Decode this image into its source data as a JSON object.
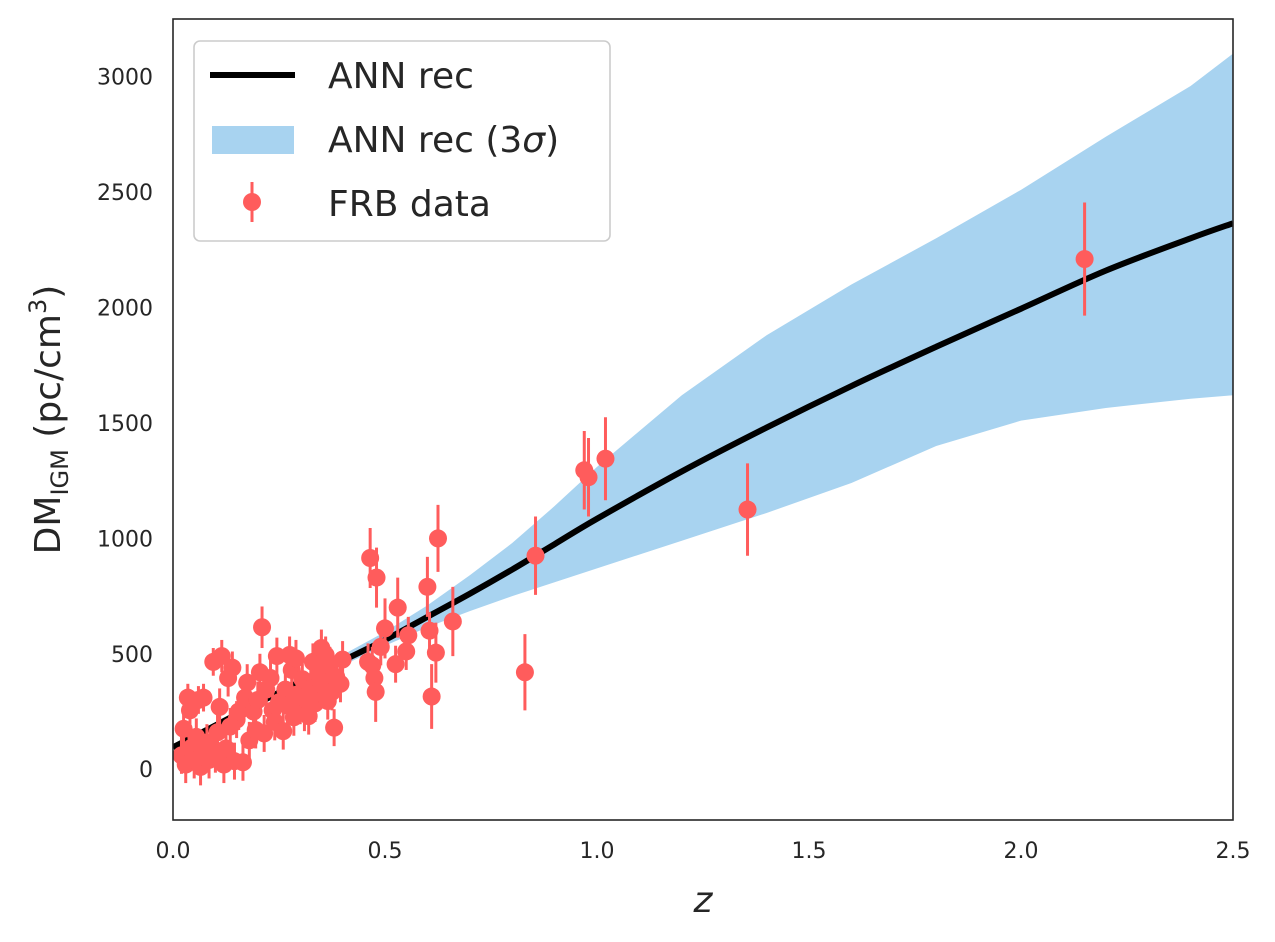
{
  "chart_data": {
    "type": "scatter",
    "title": "",
    "xlabel": "z",
    "ylabel": {
      "base": "DM",
      "sub": "IGM",
      "unit_open": " (pc/cm",
      "unit_sup": "3",
      "unit_close": ")"
    },
    "xlim": [
      0.0,
      2.5
    ],
    "ylim": [
      -220,
      3250
    ],
    "grid": false,
    "x_ticks": [
      0.0,
      0.5,
      1.0,
      1.5,
      2.0,
      2.5
    ],
    "x_tick_labels": [
      "0.0",
      "0.5",
      "1.0",
      "1.5",
      "2.0",
      "2.5"
    ],
    "y_ticks": [
      0,
      500,
      1000,
      1500,
      2000,
      2500,
      3000
    ],
    "y_tick_labels": [
      "0",
      "500",
      "1000",
      "1500",
      "2000",
      "2500",
      "3000"
    ],
    "legend": {
      "position": "top-left",
      "entries": [
        {
          "label": "ANN rec",
          "kind": "line"
        },
        {
          "label_main": "ANN rec (3",
          "label_sym": "σ",
          "label_end": ")",
          "kind": "band"
        },
        {
          "label": "FRB data",
          "kind": "errorbar"
        }
      ]
    },
    "colors": {
      "line": "#000000",
      "band": "#a8d3f0",
      "points": "#ff5c5c",
      "frame": "#262626"
    },
    "series": [
      {
        "name": "ANN rec",
        "type": "line",
        "x": [
          0.0,
          0.1,
          0.2,
          0.3,
          0.4,
          0.5,
          0.6,
          0.7,
          0.8,
          0.9,
          1.0,
          1.2,
          1.4,
          1.6,
          1.8,
          2.0,
          2.2,
          2.4,
          2.5
        ],
        "y": [
          95,
          190,
          285,
          380,
          470,
          560,
          660,
          760,
          865,
          975,
          1085,
          1290,
          1480,
          1660,
          1830,
          1995,
          2160,
          2300,
          2365
        ]
      },
      {
        "name": "ANN rec (3σ)",
        "type": "area",
        "x": [
          0.0,
          0.1,
          0.2,
          0.3,
          0.4,
          0.5,
          0.6,
          0.7,
          0.8,
          0.9,
          1.0,
          1.2,
          1.4,
          1.6,
          1.8,
          2.0,
          2.2,
          2.4,
          2.5
        ],
        "lower": [
          85,
          180,
          275,
          365,
          450,
          535,
          615,
          685,
          750,
          810,
          870,
          990,
          1110,
          1240,
          1400,
          1510,
          1565,
          1605,
          1620
        ],
        "upper": [
          105,
          200,
          295,
          395,
          495,
          595,
          710,
          840,
          980,
          1140,
          1310,
          1620,
          1880,
          2100,
          2300,
          2510,
          2740,
          2960,
          3100
        ]
      },
      {
        "name": "FRB data",
        "type": "errorbar",
        "points": [
          {
            "x": 0.02,
            "y": 60,
            "err": 80
          },
          {
            "x": 0.025,
            "y": 175,
            "err": 80
          },
          {
            "x": 0.03,
            "y": 20,
            "err": 80
          },
          {
            "x": 0.035,
            "y": 310,
            "err": 60
          },
          {
            "x": 0.04,
            "y": 255,
            "err": 60
          },
          {
            "x": 0.045,
            "y": 95,
            "err": 80
          },
          {
            "x": 0.05,
            "y": 40,
            "err": 80
          },
          {
            "x": 0.055,
            "y": 140,
            "err": 80
          },
          {
            "x": 0.06,
            "y": 300,
            "err": 60
          },
          {
            "x": 0.065,
            "y": 10,
            "err": 80
          },
          {
            "x": 0.07,
            "y": 75,
            "err": 80
          },
          {
            "x": 0.072,
            "y": 310,
            "err": 60
          },
          {
            "x": 0.08,
            "y": 115,
            "err": 80
          },
          {
            "x": 0.085,
            "y": 40,
            "err": 80
          },
          {
            "x": 0.09,
            "y": 100,
            "err": 80
          },
          {
            "x": 0.095,
            "y": 465,
            "err": 60
          },
          {
            "x": 0.1,
            "y": 65,
            "err": 80
          },
          {
            "x": 0.105,
            "y": 160,
            "err": 80
          },
          {
            "x": 0.11,
            "y": 270,
            "err": 80
          },
          {
            "x": 0.115,
            "y": 490,
            "err": 70
          },
          {
            "x": 0.12,
            "y": 20,
            "err": 80
          },
          {
            "x": 0.125,
            "y": 90,
            "err": 80
          },
          {
            "x": 0.13,
            "y": 395,
            "err": 80
          },
          {
            "x": 0.135,
            "y": 185,
            "err": 80
          },
          {
            "x": 0.14,
            "y": 440,
            "err": 70
          },
          {
            "x": 0.145,
            "y": 35,
            "err": 80
          },
          {
            "x": 0.15,
            "y": 215,
            "err": 80
          },
          {
            "x": 0.155,
            "y": 250,
            "err": 80
          },
          {
            "x": 0.165,
            "y": 30,
            "err": 80
          },
          {
            "x": 0.17,
            "y": 310,
            "err": 80
          },
          {
            "x": 0.175,
            "y": 375,
            "err": 80
          },
          {
            "x": 0.18,
            "y": 125,
            "err": 80
          },
          {
            "x": 0.19,
            "y": 250,
            "err": 80
          },
          {
            "x": 0.195,
            "y": 170,
            "err": 80
          },
          {
            "x": 0.2,
            "y": 300,
            "err": 80
          },
          {
            "x": 0.205,
            "y": 420,
            "err": 80
          },
          {
            "x": 0.21,
            "y": 615,
            "err": 90
          },
          {
            "x": 0.215,
            "y": 155,
            "err": 80
          },
          {
            "x": 0.22,
            "y": 345,
            "err": 80
          },
          {
            "x": 0.23,
            "y": 395,
            "err": 80
          },
          {
            "x": 0.235,
            "y": 255,
            "err": 80
          },
          {
            "x": 0.24,
            "y": 205,
            "err": 80
          },
          {
            "x": 0.245,
            "y": 490,
            "err": 80
          },
          {
            "x": 0.25,
            "y": 290,
            "err": 80
          },
          {
            "x": 0.26,
            "y": 165,
            "err": 80
          },
          {
            "x": 0.265,
            "y": 345,
            "err": 80
          },
          {
            "x": 0.27,
            "y": 275,
            "err": 80
          },
          {
            "x": 0.275,
            "y": 495,
            "err": 80
          },
          {
            "x": 0.28,
            "y": 430,
            "err": 80
          },
          {
            "x": 0.285,
            "y": 225,
            "err": 80
          },
          {
            "x": 0.29,
            "y": 480,
            "err": 80
          },
          {
            "x": 0.295,
            "y": 325,
            "err": 80
          },
          {
            "x": 0.3,
            "y": 275,
            "err": 80
          },
          {
            "x": 0.305,
            "y": 390,
            "err": 80
          },
          {
            "x": 0.31,
            "y": 245,
            "err": 80
          },
          {
            "x": 0.315,
            "y": 300,
            "err": 80
          },
          {
            "x": 0.32,
            "y": 230,
            "err": 80
          },
          {
            "x": 0.325,
            "y": 350,
            "err": 80
          },
          {
            "x": 0.33,
            "y": 465,
            "err": 80
          },
          {
            "x": 0.335,
            "y": 285,
            "err": 80
          },
          {
            "x": 0.34,
            "y": 330,
            "err": 80
          },
          {
            "x": 0.345,
            "y": 410,
            "err": 80
          },
          {
            "x": 0.35,
            "y": 525,
            "err": 80
          },
          {
            "x": 0.355,
            "y": 365,
            "err": 80
          },
          {
            "x": 0.36,
            "y": 495,
            "err": 80
          },
          {
            "x": 0.365,
            "y": 295,
            "err": 80
          },
          {
            "x": 0.37,
            "y": 450,
            "err": 80
          },
          {
            "x": 0.375,
            "y": 335,
            "err": 80
          },
          {
            "x": 0.38,
            "y": 180,
            "err": 80
          },
          {
            "x": 0.385,
            "y": 400,
            "err": 80
          },
          {
            "x": 0.395,
            "y": 370,
            "err": 80
          },
          {
            "x": 0.4,
            "y": 475,
            "err": 80
          },
          {
            "x": 0.46,
            "y": 465,
            "err": 80
          },
          {
            "x": 0.465,
            "y": 915,
            "err": 130
          },
          {
            "x": 0.47,
            "y": 450,
            "err": 80
          },
          {
            "x": 0.475,
            "y": 395,
            "err": 80
          },
          {
            "x": 0.478,
            "y": 335,
            "err": 130
          },
          {
            "x": 0.48,
            "y": 830,
            "err": 130
          },
          {
            "x": 0.49,
            "y": 530,
            "err": 80
          },
          {
            "x": 0.5,
            "y": 610,
            "err": 130
          },
          {
            "x": 0.525,
            "y": 455,
            "err": 80
          },
          {
            "x": 0.53,
            "y": 700,
            "err": 130
          },
          {
            "x": 0.55,
            "y": 510,
            "err": 80
          },
          {
            "x": 0.555,
            "y": 580,
            "err": 80
          },
          {
            "x": 0.6,
            "y": 790,
            "err": 130
          },
          {
            "x": 0.605,
            "y": 600,
            "err": 80
          },
          {
            "x": 0.61,
            "y": 315,
            "err": 140
          },
          {
            "x": 0.62,
            "y": 505,
            "err": 130
          },
          {
            "x": 0.625,
            "y": 1000,
            "err": 145
          },
          {
            "x": 0.66,
            "y": 640,
            "err": 150
          },
          {
            "x": 0.83,
            "y": 420,
            "err": 165
          },
          {
            "x": 0.855,
            "y": 925,
            "err": 170
          },
          {
            "x": 0.97,
            "y": 1295,
            "err": 170
          },
          {
            "x": 0.98,
            "y": 1265,
            "err": 170
          },
          {
            "x": 1.02,
            "y": 1345,
            "err": 180
          },
          {
            "x": 1.355,
            "y": 1125,
            "err": 200
          },
          {
            "x": 2.15,
            "y": 2210,
            "err": 245
          }
        ]
      }
    ]
  }
}
